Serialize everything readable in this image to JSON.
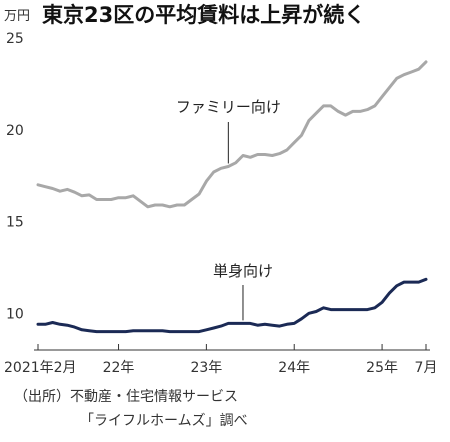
{
  "chart_data": {
    "type": "line",
    "title": "東京23区の平均賃料は上昇が続く",
    "unit": "万円",
    "yticks": [
      "10",
      "15",
      "20",
      "25"
    ],
    "ylim": [
      8,
      25
    ],
    "xlim": [
      "2021-02",
      "2025-07"
    ],
    "xtick_labels": [
      {
        "date": "2021-02",
        "label": "2021年2月"
      },
      {
        "date": "2022-01",
        "label": "22年"
      },
      {
        "date": "2023-01",
        "label": "23年"
      },
      {
        "date": "2024-01",
        "label": "24年"
      },
      {
        "date": "2025-01",
        "label": "25年"
      },
      {
        "date": "2025-07",
        "label": "7月"
      }
    ],
    "source": [
      "（出所）不動産・住宅情報サービス",
      "「ライフルホームズ」調べ"
    ],
    "series": [
      {
        "name": "ファミリー向け",
        "color": "#a8a8a8",
        "label_anchor": "2023-04",
        "x": [
          "2021-02",
          "2021-03",
          "2021-04",
          "2021-05",
          "2021-06",
          "2021-07",
          "2021-08",
          "2021-09",
          "2021-10",
          "2021-11",
          "2021-12",
          "2022-01",
          "2022-02",
          "2022-03",
          "2022-04",
          "2022-05",
          "2022-06",
          "2022-07",
          "2022-08",
          "2022-09",
          "2022-10",
          "2022-11",
          "2022-12",
          "2023-01",
          "2023-02",
          "2023-03",
          "2023-04",
          "2023-05",
          "2023-06",
          "2023-07",
          "2023-08",
          "2023-09",
          "2023-10",
          "2023-11",
          "2023-12",
          "2024-01",
          "2024-02",
          "2024-03",
          "2024-04",
          "2024-05",
          "2024-06",
          "2024-07",
          "2024-08",
          "2024-09",
          "2024-10",
          "2024-11",
          "2024-12",
          "2025-01",
          "2025-02",
          "2025-03",
          "2025-04",
          "2025-05",
          "2025-06",
          "2025-07"
        ],
        "values": [
          17.0,
          16.9,
          16.8,
          16.65,
          16.75,
          16.6,
          16.4,
          16.45,
          16.2,
          16.2,
          16.2,
          16.3,
          16.3,
          16.4,
          16.1,
          15.8,
          15.9,
          15.9,
          15.8,
          15.9,
          15.9,
          16.2,
          16.5,
          17.2,
          17.7,
          17.9,
          18.0,
          18.2,
          18.6,
          18.5,
          18.65,
          18.65,
          18.6,
          18.7,
          18.9,
          19.3,
          19.7,
          20.5,
          20.9,
          21.3,
          21.3,
          21.0,
          20.8,
          21.0,
          21.0,
          21.1,
          21.3,
          21.8,
          22.3,
          22.8,
          23.0,
          23.15,
          23.3,
          23.7
        ]
      },
      {
        "name": "単身向け",
        "color": "#1b2a55",
        "label_anchor": "2023-06",
        "x": [
          "2021-02",
          "2021-03",
          "2021-04",
          "2021-05",
          "2021-06",
          "2021-07",
          "2021-08",
          "2021-09",
          "2021-10",
          "2021-11",
          "2021-12",
          "2022-01",
          "2022-02",
          "2022-03",
          "2022-04",
          "2022-05",
          "2022-06",
          "2022-07",
          "2022-08",
          "2022-09",
          "2022-10",
          "2022-11",
          "2022-12",
          "2023-01",
          "2023-02",
          "2023-03",
          "2023-04",
          "2023-05",
          "2023-06",
          "2023-07",
          "2023-08",
          "2023-09",
          "2023-10",
          "2023-11",
          "2023-12",
          "2024-01",
          "2024-02",
          "2024-03",
          "2024-04",
          "2024-05",
          "2024-06",
          "2024-07",
          "2024-08",
          "2024-09",
          "2024-10",
          "2024-11",
          "2024-12",
          "2025-01",
          "2025-02",
          "2025-03",
          "2025-04",
          "2025-05",
          "2025-06",
          "2025-07"
        ],
        "values": [
          9.4,
          9.4,
          9.5,
          9.4,
          9.35,
          9.25,
          9.1,
          9.05,
          9.0,
          9.0,
          9.0,
          9.0,
          9.0,
          9.05,
          9.05,
          9.05,
          9.05,
          9.05,
          9.0,
          9.0,
          9.0,
          9.0,
          9.0,
          9.1,
          9.2,
          9.3,
          9.45,
          9.45,
          9.45,
          9.45,
          9.35,
          9.4,
          9.35,
          9.3,
          9.4,
          9.45,
          9.7,
          10.0,
          10.1,
          10.3,
          10.2,
          10.2,
          10.2,
          10.2,
          10.2,
          10.2,
          10.3,
          10.6,
          11.1,
          11.5,
          11.7,
          11.7,
          11.7,
          11.85
        ]
      }
    ]
  }
}
